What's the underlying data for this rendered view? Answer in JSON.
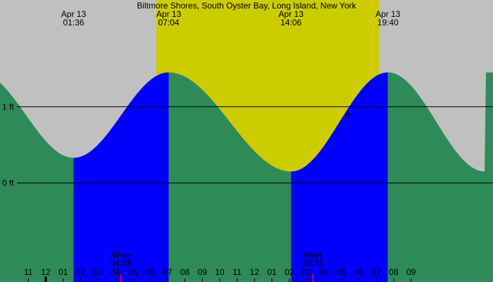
{
  "title": "Biltmore Shores, South Oyster Bay, Long Island, New York",
  "colors": {
    "night": "#c0c0c0",
    "daylight": "#cccc00",
    "rising": "#0000ff",
    "falling": "#2e8b57",
    "moon_marker": "#ff0000",
    "line": "#000000"
  },
  "chart_data": {
    "type": "area",
    "title": "Biltmore Shores, South Oyster Bay, Long Island, New York",
    "xlabel": "",
    "ylabel": "",
    "x_unit": "hour",
    "xlim": [
      -2.63,
      25.71
    ],
    "ylim": [
      -1.3,
      2.4
    ],
    "y_ticks": [
      {
        "value": 0,
        "label": "0 ft"
      },
      {
        "value": 1,
        "label": "1 ft"
      }
    ],
    "extremes": [
      {
        "type": "low",
        "date": "Apr 13",
        "time": "01:36",
        "hour": 1.6,
        "height_ft": 0.33
      },
      {
        "type": "high",
        "date": "Apr 13",
        "time": "07:04",
        "hour": 7.07,
        "height_ft": 1.45
      },
      {
        "type": "low",
        "date": "Apr 13",
        "time": "14:06",
        "hour": 14.1,
        "height_ft": 0.15
      },
      {
        "type": "high",
        "date": "Apr 13",
        "time": "19:40",
        "hour": 19.67,
        "height_ft": 1.45
      }
    ],
    "daylight": {
      "start_hour": 6.35,
      "end_hour": 19.17
    },
    "moon_events": [
      {
        "label": "Mrise",
        "time": "04:19",
        "hour": 4.32
      },
      {
        "label": "Mset",
        "time": "15:22",
        "hour": 15.37
      }
    ],
    "x_tick_labels": [
      {
        "hour": -1,
        "label": "11"
      },
      {
        "hour": 0,
        "label": "12"
      },
      {
        "hour": 1,
        "label": "01"
      },
      {
        "hour": 2,
        "label": "02"
      },
      {
        "hour": 3,
        "label": "03"
      },
      {
        "hour": 4,
        "label": "04"
      },
      {
        "hour": 5,
        "label": "05"
      },
      {
        "hour": 6,
        "label": "06"
      },
      {
        "hour": 7,
        "label": "07"
      },
      {
        "hour": 8,
        "label": "08"
      },
      {
        "hour": 9,
        "label": "09"
      },
      {
        "hour": 10,
        "label": "10"
      },
      {
        "hour": 11,
        "label": "11"
      },
      {
        "hour": 12,
        "label": "12"
      },
      {
        "hour": 13,
        "label": "01"
      },
      {
        "hour": 14,
        "label": "02"
      },
      {
        "hour": 15,
        "label": "03"
      },
      {
        "hour": 16,
        "label": "04"
      },
      {
        "hour": 17,
        "label": "05"
      },
      {
        "hour": 18,
        "label": "06"
      },
      {
        "hour": 19,
        "label": "07"
      },
      {
        "hour": 20,
        "label": "08"
      },
      {
        "hour": 21,
        "label": "09"
      }
    ],
    "current_time_marker": {
      "hour": 17.4,
      "height_ft": 0.9
    }
  }
}
